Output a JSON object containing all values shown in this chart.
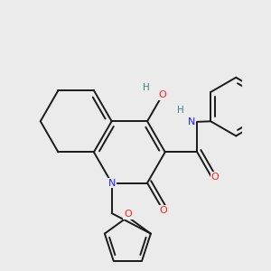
{
  "bg_color": "#ebebeb",
  "bond_color": "#1a1a1a",
  "N_color": "#2020ff",
  "O_color": "#ff2020",
  "F_color": "#e000e0",
  "H_color": "#408080",
  "line_width": 1.4,
  "figsize": [
    3.0,
    3.0
  ],
  "dpi": 100,
  "xlim": [
    -0.5,
    4.5
  ],
  "ylim": [
    -2.8,
    2.8
  ]
}
